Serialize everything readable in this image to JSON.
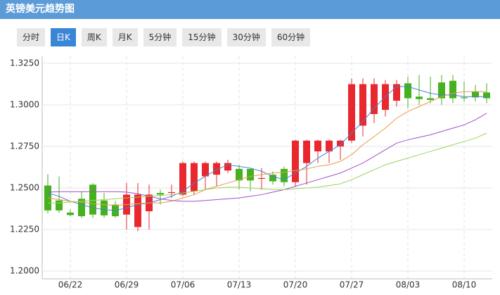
{
  "header": {
    "title": "英镑美元趋势图"
  },
  "buttons": [
    "分时",
    "日K",
    "周K",
    "月K",
    "5分钟",
    "15分钟",
    "30分钟",
    "60分钟"
  ],
  "active_button": 1,
  "chart_data": {
    "type": "candlestick",
    "categories": [
      null,
      null,
      "06/22",
      null,
      null,
      null,
      null,
      "06/29",
      null,
      null,
      null,
      null,
      "07/06",
      null,
      null,
      null,
      null,
      "07/13",
      null,
      null,
      null,
      null,
      "07/20",
      null,
      null,
      null,
      null,
      "07/27",
      null,
      null,
      null,
      null,
      "08/03",
      null,
      null,
      null,
      null,
      "08/10",
      null,
      null
    ],
    "open": [
      1.2515,
      1.2425,
      1.2352,
      1.2435,
      1.252,
      1.2425,
      1.24,
      1.234,
      1.2265,
      1.236,
      1.247,
      1.247,
      1.246,
      1.248,
      1.257,
      1.258,
      1.2605,
      1.2615,
      1.2615,
      1.2555,
      1.258,
      1.2615,
      1.2535,
      1.265,
      1.272,
      1.272,
      1.275,
      1.2785,
      1.2875,
      1.2945,
      1.297,
      1.3025,
      1.313,
      1.305,
      1.304,
      1.3135,
      1.3145,
      1.3045,
      1.308,
      1.3075
    ],
    "high": [
      1.2583,
      1.257,
      1.237,
      1.248,
      1.253,
      1.247,
      1.242,
      1.253,
      1.253,
      1.252,
      1.249,
      1.252,
      1.266,
      1.266,
      1.266,
      1.266,
      1.267,
      1.264,
      1.262,
      1.262,
      1.26,
      1.263,
      1.279,
      1.279,
      1.279,
      1.279,
      1.279,
      1.316,
      1.316,
      1.316,
      1.315,
      1.315,
      1.317,
      1.318,
      1.317,
      1.318,
      1.318,
      1.314,
      1.312,
      1.313
    ],
    "low": [
      1.2347,
      1.235,
      1.233,
      1.232,
      1.232,
      1.232,
      1.232,
      1.225,
      1.224,
      1.225,
      1.24,
      1.244,
      1.245,
      1.246,
      1.249,
      1.251,
      1.259,
      1.249,
      1.248,
      1.249,
      1.252,
      1.251,
      1.251,
      1.252,
      1.265,
      1.265,
      1.267,
      1.277,
      1.281,
      1.289,
      1.293,
      1.299,
      1.298,
      1.3,
      1.301,
      1.3,
      1.301,
      1.302,
      1.302,
      1.301
    ],
    "close": [
      1.2365,
      1.2365,
      1.2337,
      1.233,
      1.234,
      1.2335,
      1.233,
      1.246,
      1.246,
      1.246,
      1.246,
      1.2475,
      1.265,
      1.265,
      1.265,
      1.265,
      1.265,
      1.2545,
      1.2545,
      1.256,
      1.254,
      1.2535,
      1.2785,
      1.2785,
      1.2785,
      1.2785,
      1.2785,
      1.3125,
      1.3125,
      1.3125,
      1.3125,
      1.3125,
      1.304,
      1.3035,
      1.303,
      1.304,
      1.304,
      1.304,
      1.3045,
      1.304
    ],
    "up_color": "#e8282e",
    "down_color": "#44b21e",
    "lines": [
      {
        "color": "#4a7fd6",
        "values": [
          1.247,
          1.245,
          1.242,
          1.24,
          1.238,
          1.237,
          1.2365,
          1.238,
          1.24,
          1.241,
          1.243,
          1.245,
          1.248,
          1.253,
          1.257,
          1.261,
          1.264,
          1.263,
          1.262,
          1.26,
          1.257,
          1.255,
          1.259,
          1.263,
          1.268,
          1.272,
          1.276,
          1.283,
          1.29,
          1.298,
          1.305,
          1.311,
          1.311,
          1.309,
          1.307,
          1.306,
          1.306,
          1.305,
          1.305,
          1.305
        ]
      },
      {
        "color": "#e89a4a",
        "values": [
          1.244,
          1.243,
          1.242,
          1.2415,
          1.2405,
          1.24,
          1.2395,
          1.24,
          1.2405,
          1.241,
          1.241,
          1.242,
          1.244,
          1.246,
          1.249,
          1.251,
          1.253,
          1.255,
          1.257,
          1.258,
          1.259,
          1.2595,
          1.2605,
          1.2615,
          1.263,
          1.264,
          1.266,
          1.27,
          1.276,
          1.281,
          1.286,
          1.292,
          1.296,
          1.299,
          1.302,
          1.305,
          1.307,
          1.308,
          1.308,
          1.308
        ]
      },
      {
        "color": "#a050c8",
        "values": [
          1.2475,
          1.2478,
          1.2478,
          1.2478,
          1.2478,
          1.2478,
          1.2478,
          1.2475,
          1.2465,
          1.245,
          1.2435,
          1.2425,
          1.242,
          1.242,
          1.2425,
          1.243,
          1.2435,
          1.244,
          1.245,
          1.246,
          1.2475,
          1.249,
          1.251,
          1.253,
          1.255,
          1.257,
          1.259,
          1.262,
          1.265,
          1.269,
          1.273,
          1.277,
          1.279,
          1.2805,
          1.282,
          1.284,
          1.286,
          1.288,
          1.291,
          1.295
        ]
      },
      {
        "color": "#9ad45a",
        "values": [
          1.241,
          1.241,
          1.2415,
          1.242,
          1.2425,
          1.243,
          1.2435,
          1.244,
          1.2445,
          1.245,
          1.2455,
          1.246,
          1.247,
          1.248,
          1.249,
          1.25,
          1.2505,
          1.2505,
          1.25,
          1.2495,
          1.249,
          1.249,
          1.2495,
          1.25,
          1.2505,
          1.2515,
          1.2525,
          1.255,
          1.258,
          1.261,
          1.264,
          1.266,
          1.268,
          1.27,
          1.272,
          1.274,
          1.276,
          1.278,
          1.28,
          1.283
        ]
      }
    ],
    "ylim": [
      1.2,
      1.325
    ],
    "yticks": [
      {
        "value": 1.2,
        "label": "1.2000"
      },
      {
        "value": 1.225,
        "label": "1.2250"
      },
      {
        "value": 1.25,
        "label": "1.2500"
      },
      {
        "value": 1.275,
        "label": "1.2750"
      },
      {
        "value": 1.3,
        "label": "1.3000"
      },
      {
        "value": 1.325,
        "label": "1.3250"
      }
    ],
    "grid": true
  }
}
